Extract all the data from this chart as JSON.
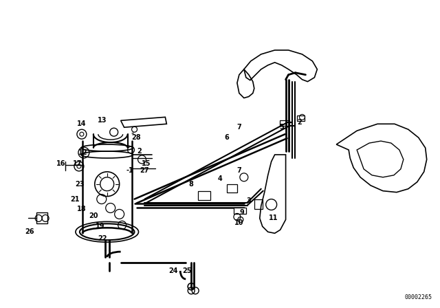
{
  "bg_color": "#ffffff",
  "line_color": "#000000",
  "part_number_text": "00002265",
  "figure_width": 6.4,
  "figure_height": 4.48,
  "dpi": 100
}
